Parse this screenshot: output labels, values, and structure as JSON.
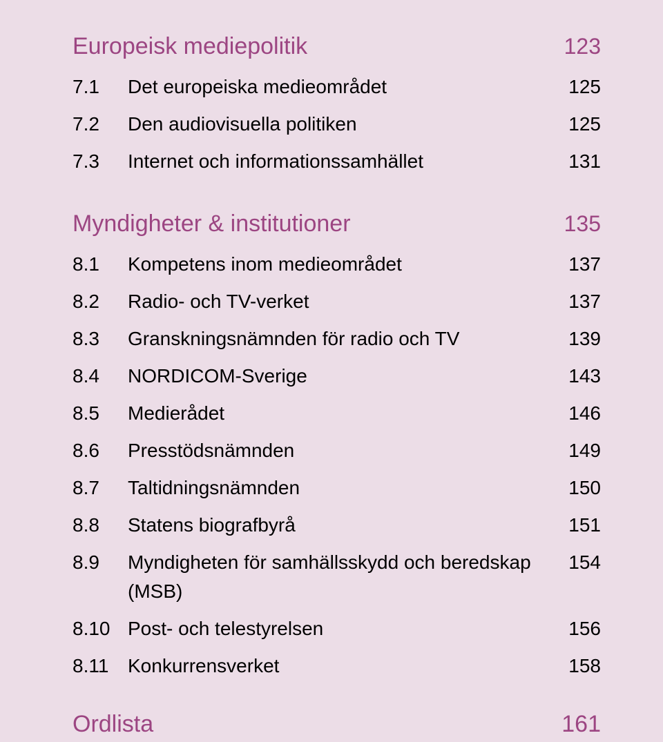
{
  "colors": {
    "background": "#ecdde7",
    "heading": "#9c4582",
    "body": "#000000"
  },
  "typography": {
    "heading_fontsize_pt": 26,
    "body_fontsize_pt": 21,
    "font_family": "Myriad Pro / sans-serif"
  },
  "sections": [
    {
      "title": "Europeisk mediepolitik",
      "page": "123",
      "entries": [
        {
          "num": "7.1",
          "label": "Det europeiska medieområdet",
          "page": "125"
        },
        {
          "num": "7.2",
          "label": "Den audiovisuella politiken",
          "page": "125"
        },
        {
          "num": "7.3",
          "label": "Internet och informationssamhället",
          "page": "131"
        }
      ]
    },
    {
      "title": "Myndigheter & institutioner",
      "page": "135",
      "entries": [
        {
          "num": "8.1",
          "label": "Kompetens inom medieområdet",
          "page": "137"
        },
        {
          "num": "8.2",
          "label": "Radio- och TV-verket",
          "page": "137"
        },
        {
          "num": "8.3",
          "label": "Granskningsnämnden för radio och TV",
          "page": "139"
        },
        {
          "num": "8.4",
          "label": "NORDICOM-Sverige",
          "page": "143"
        },
        {
          "num": "8.5",
          "label": "Medierådet",
          "page": "146"
        },
        {
          "num": "8.6",
          "label": "Presstödsnämnden",
          "page": "149"
        },
        {
          "num": "8.7",
          "label": "Taltidningsnämnden",
          "page": "150"
        },
        {
          "num": "8.8",
          "label": "Statens biografbyrå",
          "page": "151"
        },
        {
          "num": "8.9",
          "label": "Myndigheten för samhällsskydd och beredskap (MSB)",
          "page": "154"
        },
        {
          "num": "8.10",
          "label": "Post- och telestyrelsen",
          "page": "156"
        },
        {
          "num": "8.11",
          "label": "Konkurrensverket",
          "page": "158"
        }
      ]
    }
  ],
  "footer": {
    "title": "Ordlista",
    "page": "161"
  }
}
